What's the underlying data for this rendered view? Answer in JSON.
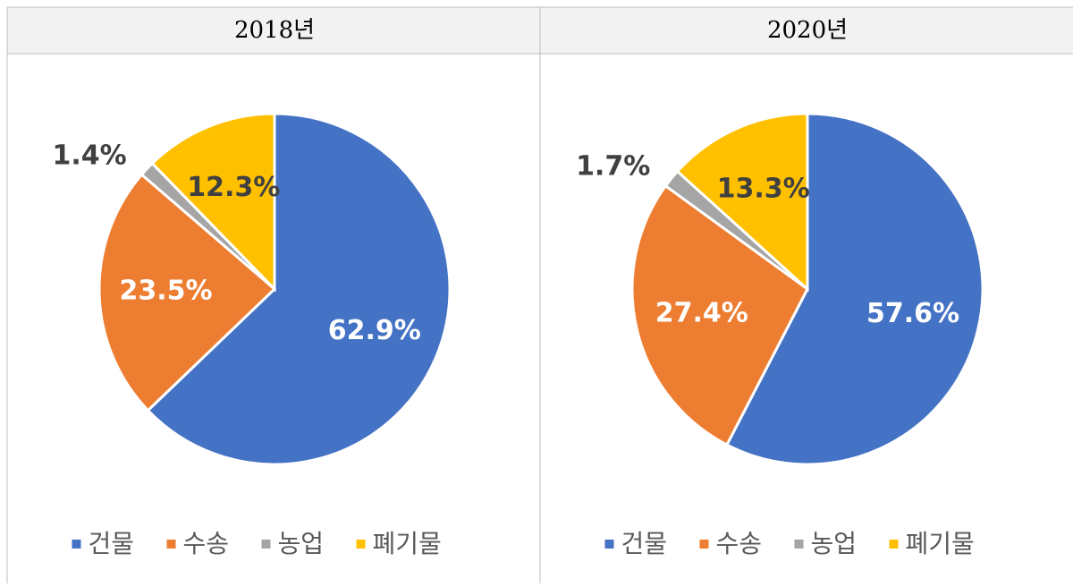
{
  "chart_data": [
    {
      "type": "pie",
      "title": "2018년",
      "categories": [
        "건물",
        "수송",
        "농업",
        "폐기물"
      ],
      "values": [
        62.9,
        23.5,
        1.4,
        12.3
      ],
      "value_labels": [
        "62.9%",
        "23.5%",
        "1.4%",
        "12.3%"
      ],
      "colors": [
        "#4472c4",
        "#ed7d31",
        "#a5a5a5",
        "#ffc000"
      ],
      "legend": "bottom"
    },
    {
      "type": "pie",
      "title": "2020년",
      "categories": [
        "건물",
        "수송",
        "농업",
        "폐기물"
      ],
      "values": [
        57.6,
        27.4,
        1.7,
        13.3
      ],
      "value_labels": [
        "57.6%",
        "27.4%",
        "1.7%",
        "13.3%"
      ],
      "colors": [
        "#4472c4",
        "#ed7d31",
        "#a5a5a5",
        "#ffc000"
      ],
      "legend": "bottom"
    }
  ]
}
